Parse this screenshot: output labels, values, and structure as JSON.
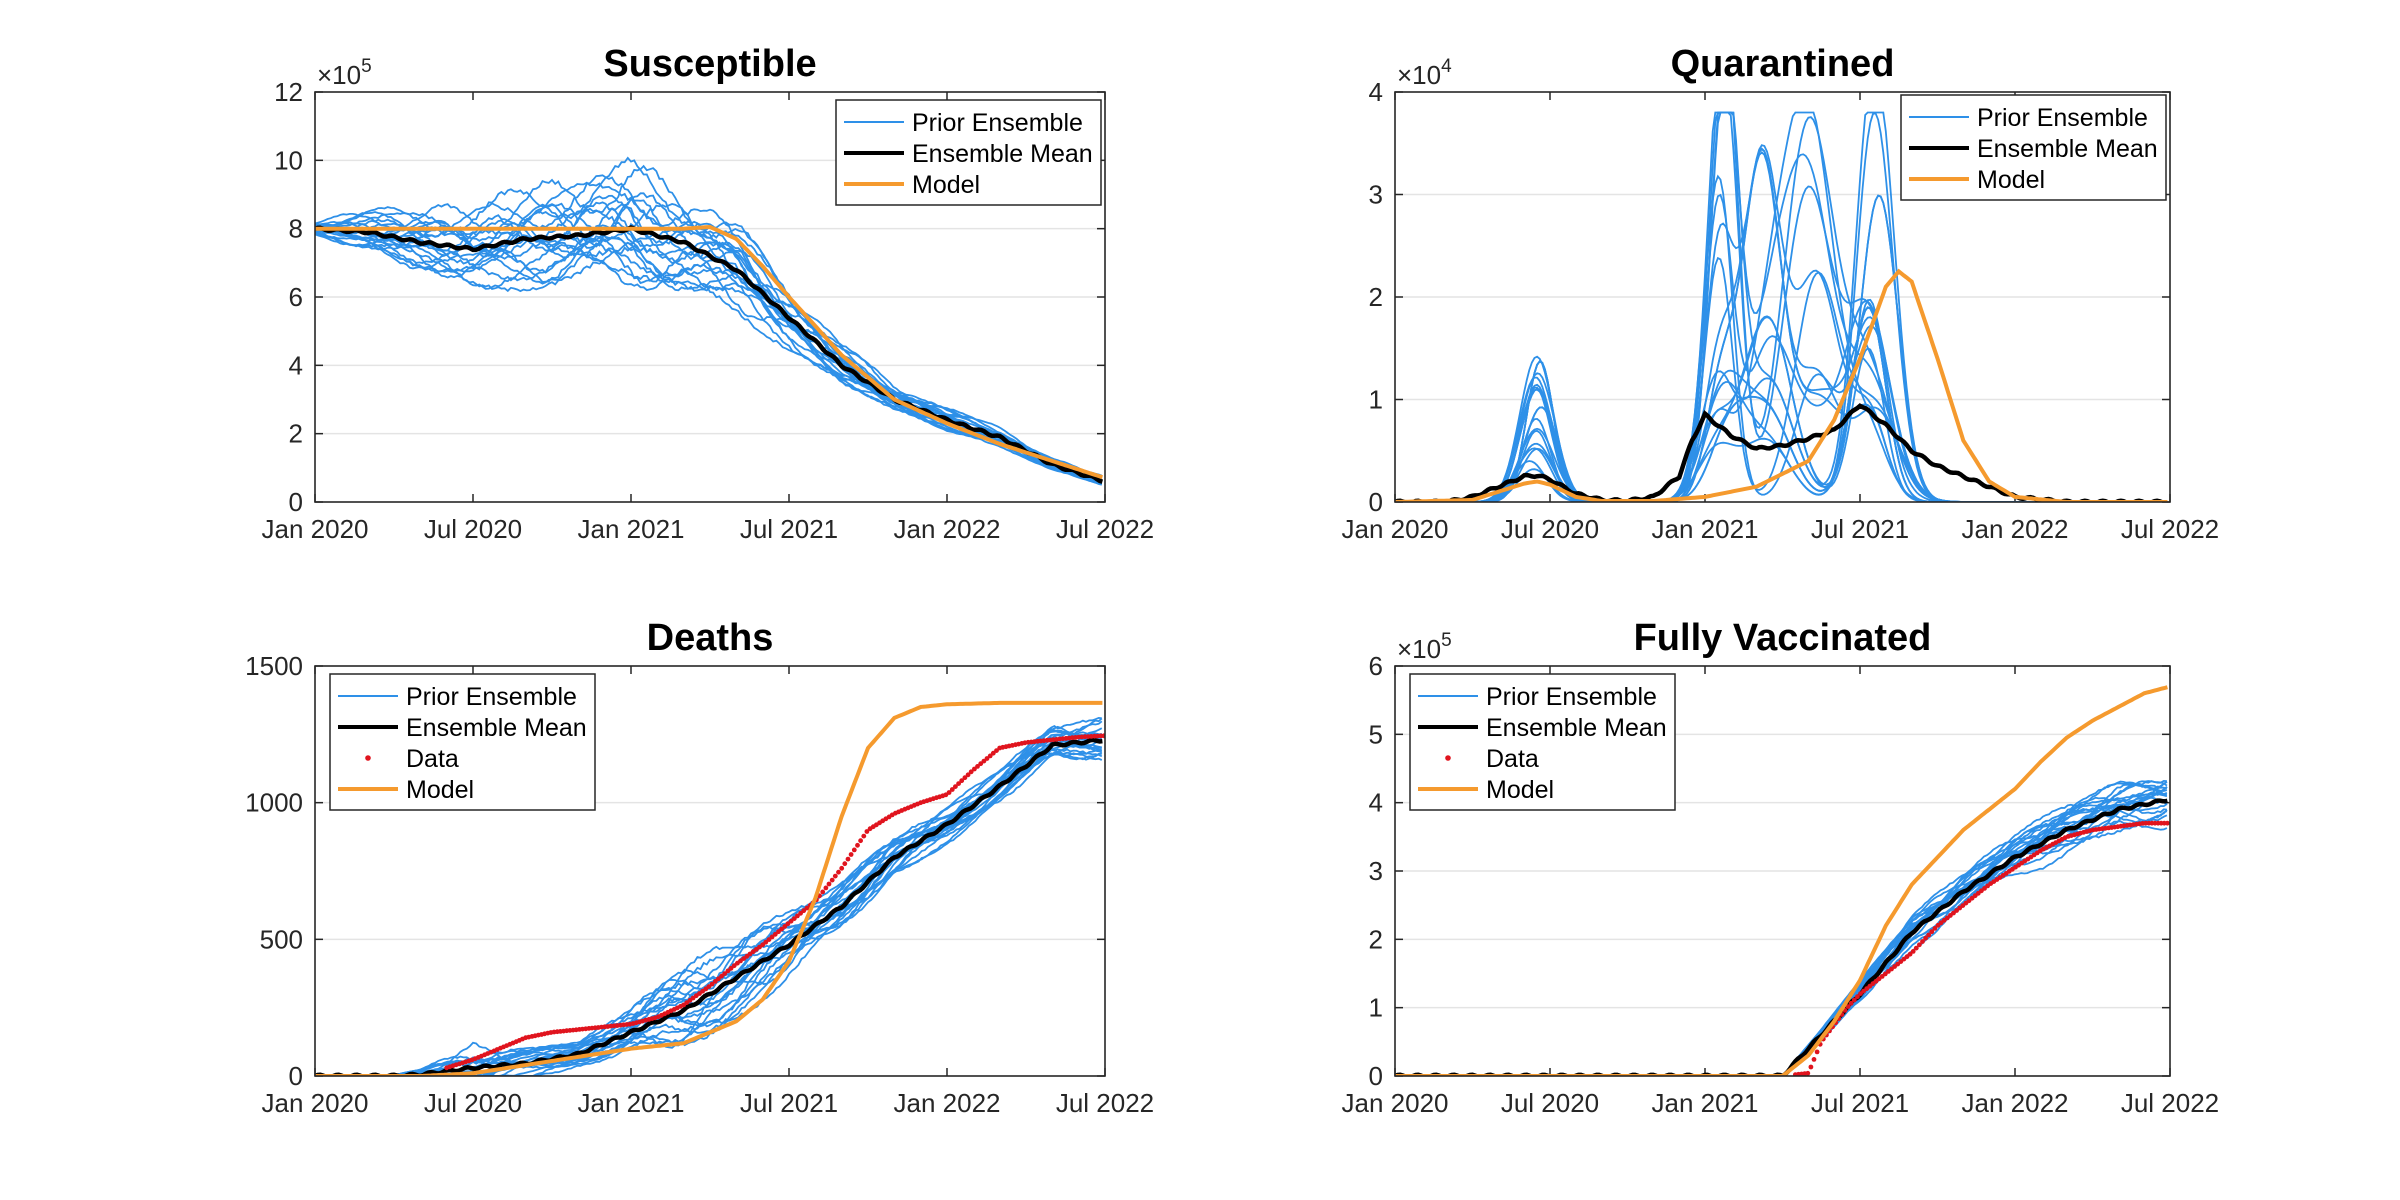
{
  "colors": {
    "prior_ensemble": "#2E90E8",
    "ensemble_mean": "#000000",
    "data": "#E0141E",
    "model": "#F59A2E",
    "grid": "#E4E4E4",
    "axis": "#262626"
  },
  "x_ticks": [
    "Jan 2020",
    "Jul 2020",
    "Jan 2021",
    "Jul 2021",
    "Jan 2022",
    "Jul 2022"
  ],
  "chart_data": [
    {
      "type": "line",
      "title": "Susceptible",
      "exponent_label": "×10",
      "exponent_power": "5",
      "xlim": [
        "Jan 2020",
        "Jul 2022"
      ],
      "ylim": [
        0,
        12
      ],
      "y_ticks": [
        "0",
        "2",
        "4",
        "6",
        "8",
        "10",
        "12"
      ],
      "grid": "horizontal",
      "legend_position": "top-right",
      "legend": [
        "Prior Ensemble",
        "Ensemble Mean",
        "Model"
      ],
      "series": [
        {
          "name": "Ensemble Mean",
          "x_months": [
            0,
            2,
            4,
            6,
            8,
            10,
            12,
            14,
            16,
            18,
            20,
            22,
            24,
            26,
            28,
            30
          ],
          "values": [
            8.0,
            7.9,
            7.6,
            7.4,
            7.7,
            7.8,
            8.0,
            7.6,
            6.8,
            5.4,
            4.0,
            3.0,
            2.4,
            1.9,
            1.1,
            0.6
          ]
        },
        {
          "name": "Model",
          "x_months": [
            0,
            4,
            8,
            12,
            14,
            15,
            16,
            17,
            18,
            20,
            22,
            24,
            26,
            28,
            30
          ],
          "values": [
            8.0,
            8.0,
            8.0,
            8.0,
            8.0,
            8.05,
            7.7,
            6.9,
            6.0,
            4.3,
            3.0,
            2.3,
            1.7,
            1.2,
            0.7
          ]
        }
      ],
      "ensemble": {
        "name": "Prior Ensemble",
        "x_months": [
          0,
          2,
          4,
          6,
          8,
          10,
          12,
          14,
          16,
          18,
          20,
          22,
          24,
          26,
          28,
          30
        ],
        "mean": [
          8.0,
          7.9,
          7.6,
          7.4,
          7.7,
          7.8,
          8.0,
          7.6,
          6.8,
          5.4,
          4.0,
          3.0,
          2.4,
          1.9,
          1.1,
          0.6
        ],
        "spread": [
          0.3,
          0.9,
          1.4,
          1.8,
          2.1,
          2.4,
          2.7,
          2.3,
          1.9,
          1.4,
          0.9,
          0.6,
          0.5,
          0.4,
          0.25,
          0.2
        ],
        "members": 20
      }
    },
    {
      "type": "line",
      "title": "Quarantined",
      "exponent_label": "×10",
      "exponent_power": "4",
      "xlim": [
        "Jan 2020",
        "Jul 2022"
      ],
      "ylim": [
        0,
        4
      ],
      "y_ticks": [
        "0",
        "1",
        "2",
        "3",
        "4"
      ],
      "grid": "horizontal",
      "legend_position": "top-right",
      "legend": [
        "Prior Ensemble",
        "Ensemble Mean",
        "Model"
      ],
      "series": [
        {
          "name": "Ensemble Mean",
          "x_months": [
            0,
            2,
            3,
            4,
            5,
            5.5,
            6,
            7,
            8,
            9,
            10,
            11,
            11.5,
            12,
            13,
            14,
            15,
            16,
            17,
            18,
            19,
            20,
            21,
            22,
            24,
            26,
            30
          ],
          "values": [
            0,
            0,
            0.05,
            0.15,
            0.25,
            0.26,
            0.22,
            0.08,
            0.02,
            0.01,
            0.05,
            0.25,
            0.6,
            0.85,
            0.65,
            0.52,
            0.55,
            0.62,
            0.7,
            0.95,
            0.75,
            0.5,
            0.35,
            0.25,
            0.05,
            0,
            0
          ]
        },
        {
          "name": "Model",
          "x_months": [
            0,
            3,
            5,
            5.5,
            6,
            7,
            8,
            10,
            12,
            14,
            16,
            17,
            18,
            19,
            19.5,
            20,
            21,
            22,
            23,
            24,
            26,
            30
          ],
          "values": [
            0,
            0.02,
            0.18,
            0.2,
            0.17,
            0.05,
            0.01,
            0.01,
            0.05,
            0.15,
            0.4,
            0.8,
            1.4,
            2.1,
            2.25,
            2.15,
            1.4,
            0.6,
            0.2,
            0.05,
            0,
            0
          ]
        }
      ],
      "peaks": [
        {
          "center": 5.5,
          "width": 0.8,
          "amplitudes": [
            1.13,
            0.9,
            0.75,
            0.55,
            0.45,
            0.4,
            0.32,
            0.28,
            0.22,
            0.18,
            0.15,
            0.12
          ]
        },
        {
          "center": 12.6,
          "width": 0.9,
          "amplitudes": [
            3.7,
            2.1,
            1.1,
            0.8,
            0.7,
            0.6,
            0.5,
            0.45,
            0.3
          ]
        },
        {
          "center": 14.3,
          "width": 1.1,
          "amplitudes": [
            3.35,
            1.4,
            1.2,
            0.9,
            0.6
          ]
        },
        {
          "center": 16.2,
          "width": 1.3,
          "amplitudes": [
            3.03,
            1.2,
            1.0,
            0.7
          ]
        },
        {
          "center": 18.6,
          "width": 1.0,
          "amplitudes": [
            2.5,
            1.9,
            1.5,
            1.2,
            0.9,
            0.8,
            0.6,
            0.5
          ]
        }
      ]
    },
    {
      "type": "line",
      "title": "Deaths",
      "xlim": [
        "Jan 2020",
        "Jul 2022"
      ],
      "ylim": [
        0,
        1500
      ],
      "y_ticks": [
        "0",
        "500",
        "1000",
        "1500"
      ],
      "grid": "horizontal",
      "legend_position": "top-left",
      "legend": [
        "Prior Ensemble",
        "Ensemble Mean",
        "Data",
        "Model"
      ],
      "series": [
        {
          "name": "Ensemble Mean",
          "x_months": [
            0,
            3,
            4,
            6,
            8,
            10,
            12,
            14,
            16,
            18,
            20,
            22,
            24,
            26,
            28,
            30
          ],
          "values": [
            0,
            0,
            5,
            30,
            45,
            80,
            160,
            240,
            360,
            480,
            620,
            800,
            920,
            1060,
            1210,
            1230
          ]
        },
        {
          "name": "Data",
          "x_months": [
            5,
            6,
            7,
            8,
            9,
            10,
            11,
            12,
            13,
            14,
            15,
            16,
            17,
            18,
            19,
            20,
            21,
            22,
            23,
            24,
            25,
            26,
            27,
            28,
            29,
            30
          ],
          "values": [
            30,
            60,
            100,
            140,
            160,
            170,
            180,
            190,
            215,
            260,
            330,
            410,
            480,
            560,
            640,
            760,
            900,
            960,
            1000,
            1030,
            1120,
            1200,
            1220,
            1230,
            1240,
            1245
          ]
        },
        {
          "name": "Model",
          "x_months": [
            0,
            4,
            6,
            8,
            10,
            12,
            14,
            16,
            17,
            18,
            19,
            20,
            21,
            22,
            23,
            24,
            26,
            28,
            30
          ],
          "values": [
            0,
            0,
            10,
            40,
            70,
            100,
            120,
            200,
            280,
            420,
            650,
            950,
            1200,
            1310,
            1350,
            1360,
            1365,
            1365,
            1365
          ]
        }
      ],
      "ensemble": {
        "name": "Prior Ensemble",
        "x_months": [
          0,
          3,
          4,
          6,
          8,
          10,
          12,
          14,
          16,
          18,
          20,
          22,
          24,
          26,
          28,
          30
        ],
        "mean": [
          0,
          0,
          5,
          30,
          45,
          80,
          160,
          240,
          360,
          480,
          620,
          800,
          920,
          1060,
          1210,
          1230
        ],
        "spread": [
          0,
          5,
          30,
          150,
          90,
          60,
          150,
          260,
          220,
          180,
          140,
          120,
          100,
          90,
          120,
          130
        ],
        "members": 20
      }
    },
    {
      "type": "line",
      "title": "Fully Vaccinated",
      "exponent_label": "×10",
      "exponent_power": "5",
      "xlim": [
        "Jan 2020",
        "Jul 2022"
      ],
      "ylim": [
        0,
        6
      ],
      "y_ticks": [
        "0",
        "1",
        "2",
        "3",
        "4",
        "5",
        "6"
      ],
      "grid": "horizontal",
      "legend_position": "top-left",
      "legend": [
        "Prior Ensemble",
        "Ensemble Mean",
        "Data",
        "Model"
      ],
      "series": [
        {
          "name": "Ensemble Mean",
          "x_months": [
            0,
            12,
            15,
            16,
            18,
            20,
            22,
            24,
            26,
            28,
            30
          ],
          "values": [
            0,
            0,
            0,
            0.4,
            1.2,
            2.1,
            2.7,
            3.2,
            3.6,
            3.9,
            4.05
          ]
        },
        {
          "name": "Data",
          "x_months": [
            15.5,
            16,
            16.5,
            17,
            17.5,
            18,
            18.5,
            19,
            19.5,
            20,
            20.5,
            21,
            22,
            23,
            24,
            25,
            26,
            27,
            28,
            29,
            30
          ],
          "values": [
            0.02,
            0.04,
            0.5,
            0.75,
            1.0,
            1.2,
            1.35,
            1.5,
            1.65,
            1.8,
            2.0,
            2.2,
            2.5,
            2.8,
            3.05,
            3.3,
            3.5,
            3.6,
            3.65,
            3.7,
            3.7
          ]
        },
        {
          "name": "Model",
          "x_months": [
            0,
            12,
            15,
            16,
            17,
            18,
            19,
            20,
            21,
            22,
            23,
            24,
            25,
            26,
            27,
            28,
            29,
            30
          ],
          "values": [
            0,
            0,
            0,
            0.3,
            0.8,
            1.4,
            2.2,
            2.8,
            3.2,
            3.6,
            3.9,
            4.2,
            4.6,
            4.95,
            5.2,
            5.4,
            5.6,
            5.7
          ]
        }
      ],
      "ensemble": {
        "name": "Prior Ensemble",
        "x_months": [
          0,
          12,
          15,
          16,
          18,
          20,
          22,
          24,
          26,
          28,
          30
        ],
        "mean": [
          0,
          0,
          0,
          0.4,
          1.2,
          2.1,
          2.7,
          3.2,
          3.6,
          3.9,
          4.05
        ],
        "spread": [
          0,
          0,
          0,
          0.1,
          0.25,
          0.35,
          0.4,
          0.45,
          0.5,
          0.55,
          0.55
        ],
        "members": 20
      }
    }
  ]
}
